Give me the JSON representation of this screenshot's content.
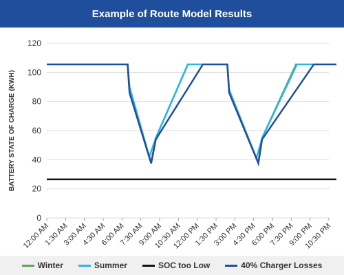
{
  "chart_data": {
    "type": "line",
    "title": "Example of Route Model Results",
    "xlabel": "",
    "ylabel": "BATTERY STATE OF CHARGE (KWH)",
    "ylim": [
      0,
      120
    ],
    "yticks": [
      0,
      20,
      40,
      60,
      80,
      100,
      120
    ],
    "categories": [
      "12:00 AM",
      "1:30 AM",
      "3:00 AM",
      "4:30 AM",
      "6:00 AM",
      "7:30 AM",
      "9:00 AM",
      "10:30 AM",
      "12:00 PM",
      "1:30 PM",
      "3:00 PM",
      "4:30 PM",
      "6:00 PM",
      "7:30 PM",
      "9:00 PM",
      "10:30 PM"
    ],
    "grid": true,
    "legend_position": "bottom",
    "series": [
      {
        "name": "Winter",
        "color": "#5aa55a",
        "points": [
          [
            0,
            105.5
          ],
          [
            4.3,
            105.5
          ],
          [
            4.4,
            86
          ],
          [
            5.55,
            38
          ],
          [
            5.8,
            55
          ],
          [
            7.5,
            105.5
          ],
          [
            9.6,
            105.5
          ],
          [
            9.7,
            87
          ],
          [
            11.25,
            38
          ],
          [
            11.45,
            55
          ],
          [
            13.25,
            105.5
          ],
          [
            15.4,
            105.5
          ]
        ]
      },
      {
        "name": "Summer",
        "color": "#29b5e8",
        "points": [
          [
            0,
            105.5
          ],
          [
            4.3,
            105.5
          ],
          [
            4.4,
            90
          ],
          [
            5.45,
            42
          ],
          [
            5.8,
            55
          ],
          [
            7.5,
            105.5
          ],
          [
            9.6,
            105.5
          ],
          [
            9.7,
            88
          ],
          [
            11.15,
            41
          ],
          [
            11.45,
            55
          ],
          [
            13.3,
            105.5
          ],
          [
            15.4,
            105.5
          ]
        ]
      },
      {
        "name": "SOC too Low",
        "color": "#111111",
        "points": [
          [
            0,
            26.5
          ],
          [
            15.4,
            26.5
          ]
        ]
      },
      {
        "name": "40% Charger Losses",
        "color": "#1f4e9c",
        "points": [
          [
            0,
            105.5
          ],
          [
            4.3,
            105.5
          ],
          [
            4.4,
            86
          ],
          [
            5.55,
            37.5
          ],
          [
            5.8,
            54
          ],
          [
            8.3,
            105.5
          ],
          [
            9.6,
            105.5
          ],
          [
            9.7,
            86
          ],
          [
            11.25,
            37.5
          ],
          [
            11.45,
            54
          ],
          [
            14.2,
            105.5
          ],
          [
            15.4,
            105.5
          ]
        ]
      }
    ]
  }
}
